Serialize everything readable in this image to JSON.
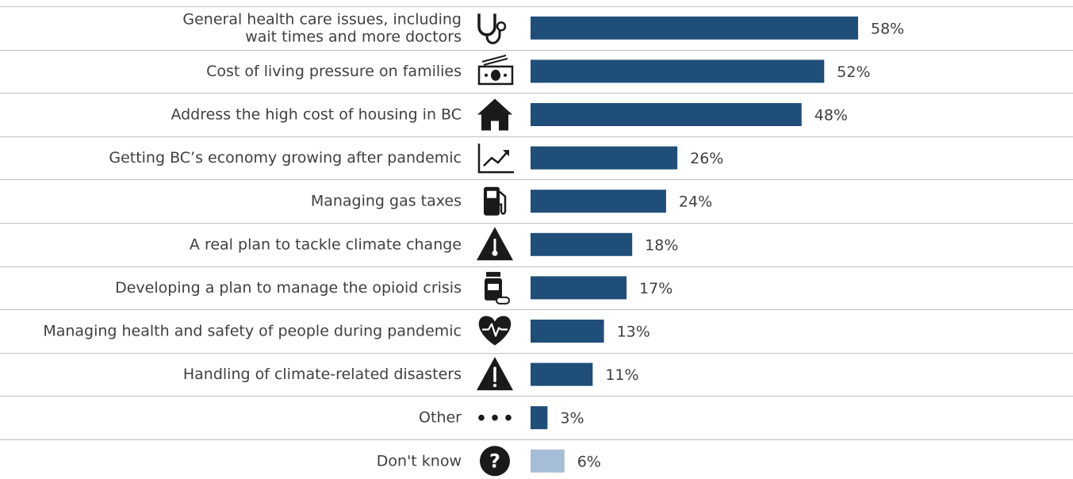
{
  "chart_data": {
    "type": "bar",
    "orientation": "horizontal",
    "categories": [
      [
        "General health care issues, including",
        "wait times and more doctors"
      ],
      [
        "Cost of living pressure on families"
      ],
      [
        "Address the high cost of housing in BC"
      ],
      [
        "Getting BC’s economy growing after pandemic"
      ],
      [
        "Managing gas taxes"
      ],
      [
        "A real plan to tackle climate change"
      ],
      [
        "Developing a plan to manage the opioid crisis"
      ],
      [
        "Managing health and safety of people during pandemic"
      ],
      [
        "Handling of climate-related disasters"
      ],
      [
        "Other"
      ],
      [
        "Don't know"
      ]
    ],
    "values": [
      58,
      52,
      48,
      26,
      24,
      18,
      17,
      13,
      11,
      3,
      6
    ],
    "value_labels": [
      "58%",
      "52%",
      "48%",
      "26%",
      "24%",
      "18%",
      "17%",
      "13%",
      "11%",
      "3%",
      "6%"
    ],
    "icons": [
      "stethoscope-icon",
      "money-icon",
      "house-icon",
      "growth-chart-icon",
      "gas-pump-icon",
      "thermometer-warning-icon",
      "pill-bottle-icon",
      "heartbeat-icon",
      "warning-icon",
      "ellipsis-icon",
      "question-icon"
    ],
    "colors": {
      "primary": "#1f4e79",
      "dont_know": "#a6bdd7",
      "icon": "#1a1a1a",
      "separator": "#bfbfbf"
    },
    "xlim": [
      0,
      100
    ],
    "grid": false,
    "legend": "none"
  }
}
